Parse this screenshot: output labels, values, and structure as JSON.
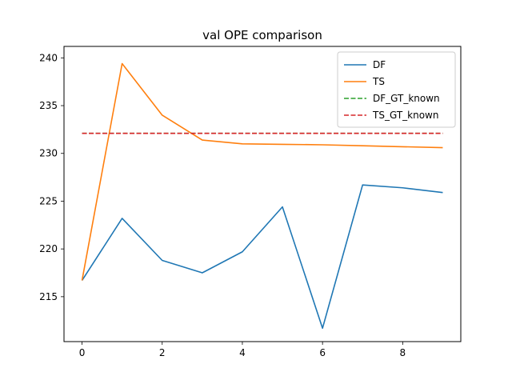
{
  "chart_data": {
    "type": "line",
    "title": "val OPE comparison",
    "xlabel": "",
    "ylabel": "",
    "x": [
      0,
      1,
      2,
      3,
      4,
      5,
      6,
      7,
      8,
      9
    ],
    "xlim": [
      -0.45,
      9.45
    ],
    "ylim": [
      210.3,
      241.2
    ],
    "xticks": [
      0,
      2,
      4,
      6,
      8
    ],
    "yticks": [
      215,
      220,
      225,
      230,
      235,
      240
    ],
    "grid": false,
    "legend_position": "top-right",
    "series": [
      {
        "name": "DF",
        "color": "#1f77b4",
        "style": "solid",
        "values": [
          216.7,
          223.2,
          218.8,
          217.5,
          219.7,
          224.4,
          211.7,
          226.7,
          226.4,
          225.9
        ]
      },
      {
        "name": "TS",
        "color": "#ff7f0e",
        "style": "solid",
        "values": [
          216.7,
          239.4,
          234.0,
          231.4,
          231.0,
          230.95,
          230.9,
          230.8,
          230.7,
          230.6
        ]
      },
      {
        "name": "DF_GT_known",
        "color": "#2ca02c",
        "style": "dashed",
        "values": [
          232.1,
          232.1,
          232.1,
          232.1,
          232.1,
          232.1,
          232.1,
          232.1,
          232.1,
          232.1
        ]
      },
      {
        "name": "TS_GT_known",
        "color": "#d62728",
        "style": "dashed",
        "values": [
          232.1,
          232.1,
          232.1,
          232.1,
          232.1,
          232.1,
          232.1,
          232.1,
          232.1,
          232.1
        ]
      }
    ]
  }
}
